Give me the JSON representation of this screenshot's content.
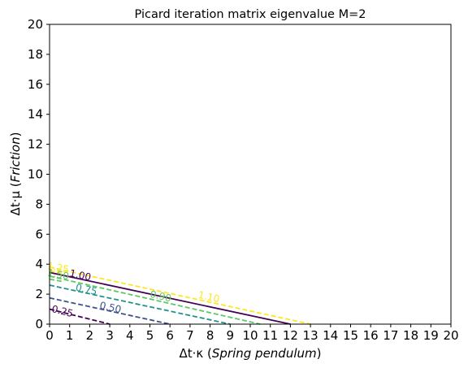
{
  "chart_data": {
    "type": "contour",
    "title": "Picard iteration matrix eigenvalue  M=2",
    "xlabel": {
      "prefix": "Δt·κ (",
      "italic": "Spring pendulum",
      "suffix": ")"
    },
    "ylabel": {
      "prefix": "Δt·μ (",
      "italic": "Friction",
      "suffix": ")"
    },
    "xlim": [
      0,
      20
    ],
    "ylim": [
      0,
      20
    ],
    "xticks": [
      "0",
      "1",
      "2",
      "3",
      "4",
      "5",
      "6",
      "7",
      "8",
      "9",
      "10",
      "11",
      "12",
      "13",
      "14",
      "15",
      "16",
      "17",
      "18",
      "19",
      "20"
    ],
    "yticks": [
      "0",
      "2",
      "4",
      "6",
      "8",
      "10",
      "12",
      "14",
      "16",
      "18",
      "20"
    ],
    "levels": [
      {
        "level": "0.25",
        "color": "#440154",
        "style": "dashed",
        "x": [
          0,
          3.0
        ],
        "y": [
          1.0,
          0
        ],
        "label_x": 0.6,
        "label_y": 0.65
      },
      {
        "level": "0.50",
        "color": "#3b528b",
        "style": "dashed",
        "x": [
          0,
          6.0
        ],
        "y": [
          1.75,
          0
        ],
        "label_x": 3.0,
        "label_y": 0.9
      },
      {
        "level": "0.75",
        "color": "#21918c",
        "style": "dashed",
        "x": [
          0,
          9.0
        ],
        "y": [
          2.6,
          0
        ],
        "label_x": 1.8,
        "label_y": 2.1
      },
      {
        "level": "0.90",
        "color": "#5ec962",
        "style": "dashed",
        "x": [
          0,
          10.5
        ],
        "y": [
          3.2,
          0
        ],
        "label_x": 5.5,
        "label_y": 1.65
      },
      {
        "level": "1.00",
        "color": "#440154",
        "style": "solid",
        "x": [
          0,
          12.0
        ],
        "y": [
          3.45,
          0
        ],
        "label_x": 1.5,
        "label_y": 3.05
      },
      {
        "level": "1.10",
        "color": "#fde725",
        "style": "dashed",
        "x": [
          0,
          13.0
        ],
        "y": [
          3.8,
          0
        ],
        "label_x": 7.9,
        "label_y": 1.6
      },
      {
        "level": "1.25",
        "color": "#fde725",
        "style": "dashed",
        "x": [
          0,
          0.6
        ],
        "y": [
          3.55,
          3.4
        ],
        "label_x": 0.4,
        "label_y": 3.55
      },
      {
        "level": "1.50",
        "color": "#5ec962",
        "style": "dashed",
        "x": [
          0,
          0.6
        ],
        "y": [
          3.0,
          2.85
        ],
        "label_x": 0.4,
        "label_y": 3.1
      }
    ]
  }
}
